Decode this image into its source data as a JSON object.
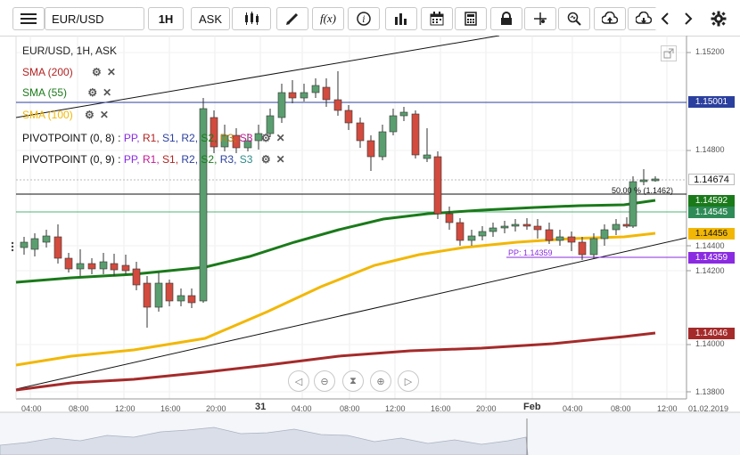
{
  "toolbar": {
    "symbol": "EUR/USD",
    "timeframe": "1H",
    "price_type": "ASK",
    "fx_label": "f(x)"
  },
  "legend": {
    "title": "EUR/USD, 1H, ASK",
    "sma200": {
      "label": "SMA (200)",
      "color": "#b22222"
    },
    "sma55": {
      "label": "SMA (55)",
      "color": "#1a7a1a"
    },
    "sma100": {
      "label": "SMA (100)",
      "color": "#f2b705"
    },
    "pivot1": {
      "label": "PIVOTPOINT (0, 8)",
      "sep": ":",
      "items": [
        "PP,",
        "R1,",
        "S1,",
        "R2,",
        "S2,",
        "R3,",
        "S3"
      ]
    },
    "pivot2": {
      "label": "PIVOTPOINT (0, 9)",
      "sep": ":",
      "items": [
        "PP,",
        "R1,",
        "S1,",
        "R2,",
        "S2,",
        "R3,",
        "S3"
      ]
    }
  },
  "price_axis": {
    "ticks": [
      "1.15200",
      "1.14800",
      "1.14400",
      "1.14200",
      "1.14000",
      "1.13800"
    ],
    "current_price": "1.14674",
    "level_1": "1.15001",
    "level_2": "1.14592",
    "level_3": "1.14545",
    "level_4": "1.14456",
    "level_5": "1.14359",
    "level_6": "1.14046"
  },
  "time_axis": {
    "labels": [
      "04:00",
      "08:00",
      "12:00",
      "16:00",
      "20:00",
      "31",
      "04:00",
      "08:00",
      "12:00",
      "16:00",
      "20:00",
      "Feb",
      "04:00",
      "08:00",
      "12:00",
      "01.02.2019"
    ]
  },
  "annotations": {
    "fib": "50.00 % (1.1462)",
    "pp": "PP: 1.14359"
  },
  "colors": {
    "bull": "#5a9e6f",
    "bear": "#d24b3e",
    "sma55": "#1a7a1a",
    "sma100": "#f2b705",
    "sma200": "#a52a2a",
    "resistance": "#2b3f9e"
  }
}
